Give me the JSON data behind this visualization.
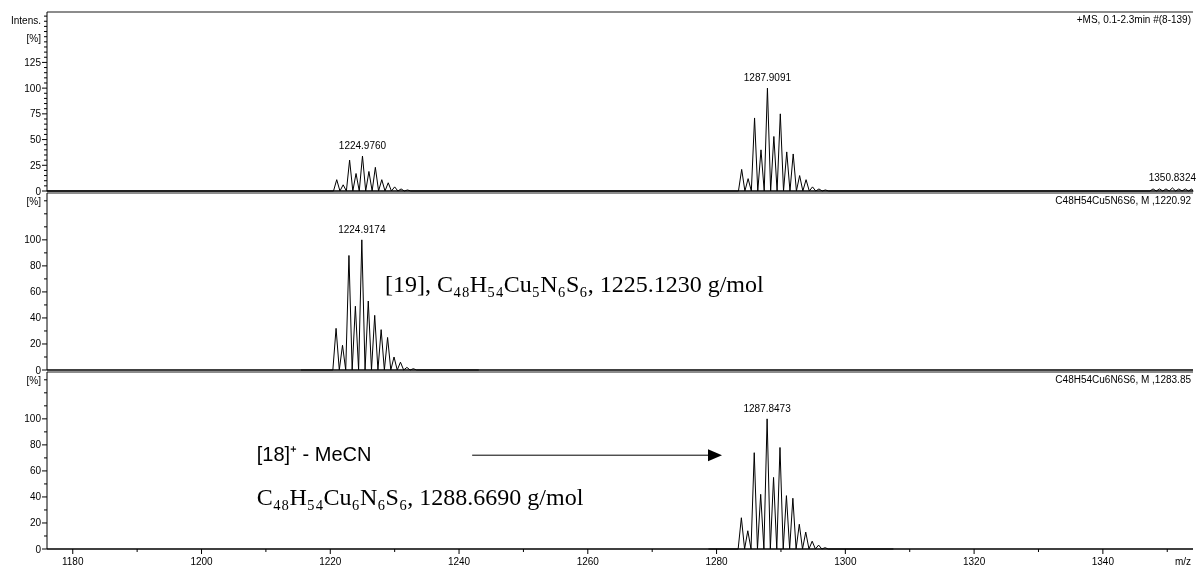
{
  "chart_data": [
    {
      "type": "line",
      "ylabel": "Intens. [%]",
      "xlim": [
        1176,
        1354
      ],
      "ylim": [
        0,
        174
      ],
      "tick_labels": "y",
      "yticks": [
        0,
        {
          "value": 5,
          "label": null
        },
        {
          "value": 10,
          "label": null
        },
        {
          "value": 15,
          "label": null
        },
        {
          "value": 20,
          "label": null
        },
        25,
        {
          "value": 30,
          "label": null
        },
        {
          "value": 35,
          "label": null
        },
        {
          "value": 40,
          "label": null
        },
        {
          "value": 45,
          "label": null
        },
        50,
        {
          "value": 55,
          "label": null
        },
        {
          "value": 60,
          "label": null
        },
        {
          "value": 65,
          "label": null
        },
        {
          "value": 70,
          "label": null
        },
        75,
        {
          "value": 80,
          "label": null
        },
        {
          "value": 85,
          "label": null
        },
        {
          "value": 90,
          "label": null
        },
        {
          "value": 95,
          "label": null
        },
        100,
        {
          "value": 105,
          "label": null
        },
        {
          "value": 110,
          "label": null
        },
        {
          "value": 115,
          "label": null
        },
        {
          "value": 120,
          "label": null
        },
        125,
        {
          "value": 130,
          "label": null
        },
        {
          "value": 135,
          "label": null
        },
        {
          "value": 140,
          "label": null
        },
        {
          "value": 145,
          "label": null
        },
        {
          "value": 150,
          "label": null
        },
        {
          "value": 155,
          "label": null
        },
        {
          "value": 160,
          "label": null
        },
        {
          "value": 165,
          "label": null
        },
        {
          "value": 170,
          "label": null
        }
      ],
      "color": "#000000",
      "x": [
        1176,
        1220.5,
        1221,
        1221.5,
        1222,
        1222.5,
        1223,
        1223.5,
        1224,
        1224.5,
        1225,
        1225.5,
        1226,
        1226.5,
        1227,
        1227.5,
        1228,
        1228.5,
        1229,
        1229.5,
        1230,
        1230.5,
        1231,
        1231.5,
        1232,
        1232.5,
        1283.4,
        1283.9,
        1284.4,
        1284.9,
        1285.4,
        1285.9,
        1286.4,
        1286.9,
        1287.4,
        1287.9,
        1288.4,
        1288.9,
        1289.4,
        1289.9,
        1290.4,
        1290.9,
        1291.4,
        1291.9,
        1292.4,
        1292.9,
        1293.4,
        1293.9,
        1294.4,
        1294.9,
        1295.4,
        1295.9,
        1296.4,
        1296.9,
        1297.4,
        1347.3,
        1347.8,
        1348.3,
        1348.8,
        1349.3,
        1349.8,
        1350.3,
        1350.8,
        1351.3,
        1351.8,
        1352.3,
        1352.8,
        1353.3,
        1353.8,
        1354
      ],
      "values": [
        0,
        0,
        11,
        0,
        6,
        0,
        30,
        0,
        17,
        0,
        34,
        0,
        19,
        0,
        23,
        0,
        11,
        0,
        8,
        0,
        4,
        0,
        2,
        0,
        1,
        0,
        0,
        21,
        0,
        12,
        0,
        71,
        0,
        40,
        0,
        100,
        0,
        53,
        0,
        75,
        0,
        38,
        0,
        36,
        0,
        15,
        0,
        11,
        0,
        4,
        0,
        2,
        0,
        1,
        0,
        0,
        2,
        0,
        2,
        0,
        2,
        0,
        3,
        0,
        2,
        0,
        2,
        0,
        2,
        0
      ],
      "annotations": [
        "+MS, 0.1-2.3min #(8-139)",
        {
          "text": "1224.9760",
          "x": 1225,
          "y": 34
        },
        {
          "text": "1287.9091",
          "x": 1287.9,
          "y": 100
        },
        {
          "text": "1350.8324",
          "x": 1350.8,
          "y": 3
        }
      ]
    },
    {
      "type": "line",
      "ylabel": "[%]",
      "xlim": [
        1176,
        1354
      ],
      "ylim": [
        0,
        136
      ],
      "tick_labels": "y",
      "yticks": [
        0,
        {
          "value": 10,
          "label": null
        },
        20,
        {
          "value": 30,
          "label": null
        },
        40,
        {
          "value": 50,
          "label": null
        },
        60,
        {
          "value": 70,
          "label": null
        },
        80,
        {
          "value": 90,
          "label": null
        },
        100,
        {
          "value": 110,
          "label": null
        },
        {
          "value": 120,
          "label": null
        },
        {
          "value": 130,
          "label": null
        }
      ],
      "color": "#000000",
      "x": [
        1215.5,
        1220.4,
        1220.9,
        1221.4,
        1221.9,
        1222.4,
        1222.9,
        1223.4,
        1223.9,
        1224.4,
        1224.9,
        1225.4,
        1225.9,
        1226.4,
        1226.9,
        1227.4,
        1227.9,
        1228.4,
        1228.9,
        1229.4,
        1229.9,
        1230.4,
        1230.9,
        1231.4,
        1231.9,
        1232.4,
        1232.9,
        1233.4,
        1243
      ],
      "values": [
        0,
        0,
        32,
        0,
        19,
        0,
        88,
        0,
        49,
        0,
        100,
        0,
        53,
        0,
        42,
        0,
        31,
        0,
        25,
        0,
        10,
        0,
        6,
        0,
        2,
        0,
        1,
        0,
        0
      ],
      "annotations": [
        "C48H54Cu5N6S6, M ,1220.92",
        {
          "text": "1224.9174",
          "x": 1224.9,
          "y": 100
        },
        "[19], C₄₈H₅₄Cu₅N₆S₆, 1225.1230 g/mol"
      ]
    },
    {
      "type": "line",
      "ylabel": "[%]",
      "xlabel": "m/z",
      "xlim": [
        1176,
        1354
      ],
      "ylim": [
        0,
        136
      ],
      "xticks": [
        1180,
        {
          "value": 1190,
          "label": null
        },
        1200,
        {
          "value": 1210,
          "label": null
        },
        1220,
        {
          "value": 1230,
          "label": null
        },
        1240,
        {
          "value": 1250,
          "label": null
        },
        1260,
        {
          "value": 1270,
          "label": null
        },
        1280,
        {
          "value": 1290,
          "label": null
        },
        1300,
        {
          "value": 1310,
          "label": null
        },
        1320,
        {
          "value": 1330,
          "label": null
        },
        1340,
        {
          "value": 1350,
          "label": null
        }
      ],
      "yticks": [
        0,
        {
          "value": 10,
          "label": null
        },
        20,
        {
          "value": 30,
          "label": null
        },
        40,
        {
          "value": 50,
          "label": null
        },
        60,
        {
          "value": 70,
          "label": null
        },
        80,
        {
          "value": 90,
          "label": null
        },
        100,
        {
          "value": 110,
          "label": null
        },
        {
          "value": 120,
          "label": null
        },
        {
          "value": 130,
          "label": null
        }
      ],
      "color": "#000000",
      "x": [
        1278.8,
        1283.35,
        1283.85,
        1284.35,
        1284.85,
        1285.35,
        1285.85,
        1286.35,
        1286.85,
        1287.35,
        1287.85,
        1288.35,
        1288.85,
        1289.35,
        1289.85,
        1290.35,
        1290.85,
        1291.35,
        1291.85,
        1292.35,
        1292.85,
        1293.35,
        1293.85,
        1294.35,
        1294.85,
        1295.35,
        1295.85,
        1296.35,
        1296.85,
        1297.35,
        1307.4
      ],
      "values": [
        0,
        0,
        24,
        0,
        14,
        0,
        74,
        0,
        42,
        0,
        100,
        0,
        55,
        0,
        78,
        0,
        41,
        0,
        39,
        0,
        19,
        0,
        13,
        0,
        6,
        0,
        3,
        0,
        1,
        0,
        0
      ],
      "annotations": [
        "C48H54Cu6N6S6, M ,1283.85",
        {
          "text": "1287.8473",
          "x": 1287.85,
          "y": 100
        },
        "[18]⁺ - MeCN",
        "C₄₈H₅₄Cu₆N₆S₆, 1288.6690 g/mol"
      ]
    }
  ]
}
